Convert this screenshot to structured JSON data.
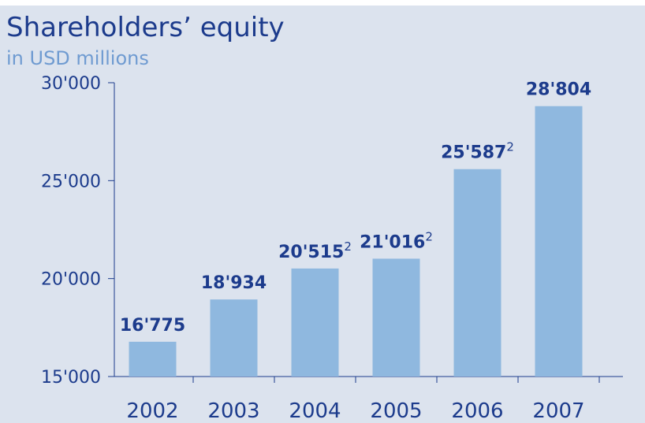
{
  "chart_data": {
    "type": "bar",
    "title": "Shareholders’ equity",
    "subtitle": "in USD millions",
    "categories": [
      "2002",
      "2003",
      "2004",
      "2005",
      "2006",
      "2007"
    ],
    "values": [
      16775,
      18934,
      20515,
      21016,
      25587,
      28804
    ],
    "value_labels": [
      "16'775",
      "18'934",
      "20'515",
      "21'016",
      "25'587",
      "28'804"
    ],
    "value_notes": [
      null,
      null,
      "2",
      "2",
      "2",
      null
    ],
    "color": "#8fb8df",
    "ylim": [
      15000,
      30000
    ],
    "yticks": [
      {
        "value": 15000,
        "label": "15'000"
      },
      {
        "value": 20000,
        "label": "20'000"
      },
      {
        "value": 25000,
        "label": "25'000"
      },
      {
        "value": 30000,
        "label": "30'000"
      }
    ]
  }
}
